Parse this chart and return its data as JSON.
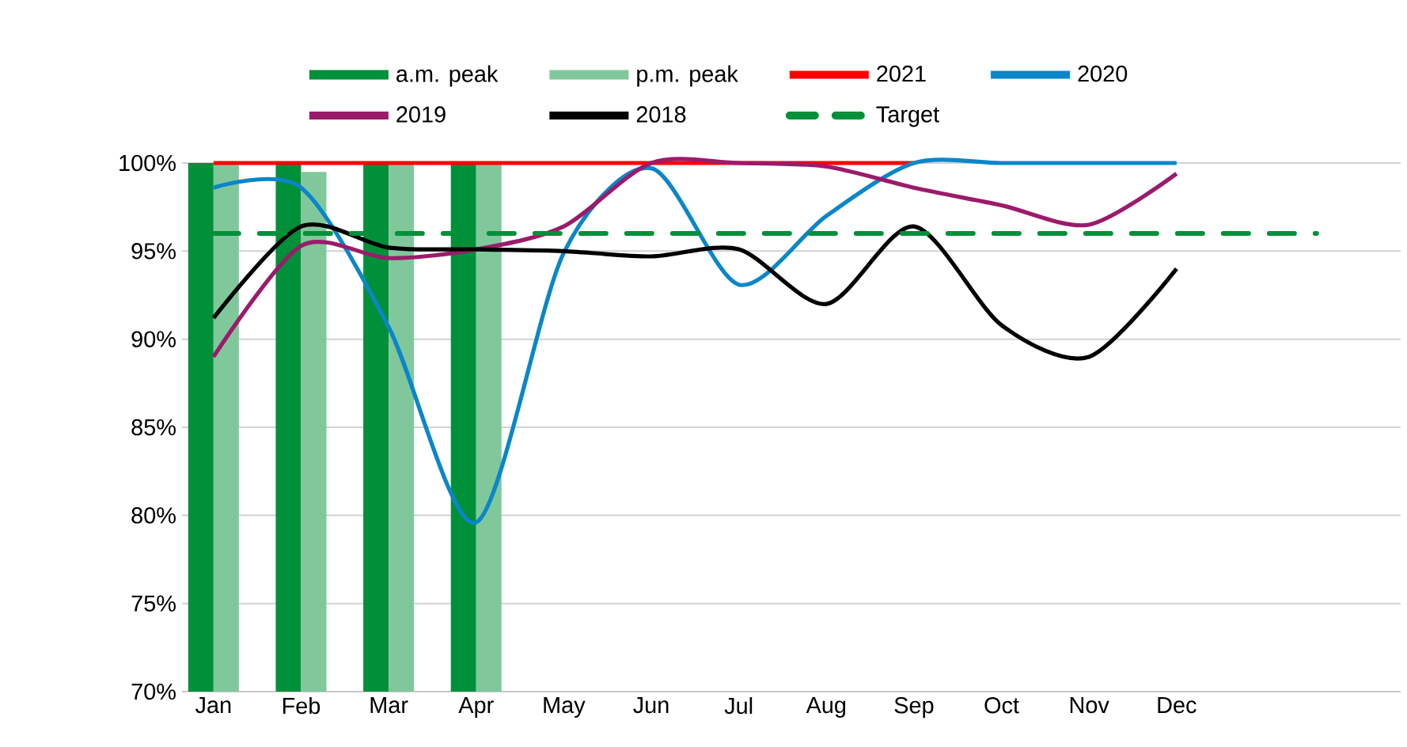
{
  "chart_data": {
    "type": "bar",
    "categories": [
      "Jan",
      "Feb",
      "Mar",
      "Apr",
      "May",
      "Jun",
      "Jul",
      "Aug",
      "Sep",
      "Oct",
      "Nov",
      "Dec"
    ],
    "series": [
      {
        "name": "a.m. peak",
        "color": "#009039",
        "values": [
          100,
          100,
          100,
          100,
          null,
          null,
          null,
          null,
          null,
          null,
          null,
          null
        ]
      },
      {
        "name": "p.m. peak",
        "color": "#80c89b",
        "values": [
          100,
          99.5,
          100,
          100,
          null,
          null,
          null,
          null,
          null,
          null,
          null,
          null
        ]
      },
      {
        "name": "2021",
        "type": "line",
        "color": "#ff0000",
        "values": [
          100,
          100,
          100,
          100,
          100,
          100,
          100,
          100,
          100,
          null,
          null,
          null
        ]
      },
      {
        "name": "2020",
        "type": "line",
        "color": "#0a86c9",
        "values": [
          98.6,
          98.6,
          90.7,
          79.6,
          94.9,
          99.7,
          93.1,
          97.0,
          100,
          100,
          100,
          100
        ]
      },
      {
        "name": "2019",
        "type": "line",
        "color": "#9b1b6b",
        "values": [
          89.0,
          95.3,
          94.6,
          95.1,
          96.4,
          100,
          100,
          99.8,
          98.6,
          97.6,
          96.5,
          99.4
        ]
      },
      {
        "name": "2018",
        "type": "line",
        "color": "#000000",
        "values": [
          91.2,
          96.4,
          95.2,
          95.1,
          95.0,
          94.7,
          95.1,
          92.0,
          96.4,
          90.8,
          89.0,
          94.0
        ]
      }
    ],
    "ref_lines": [
      {
        "axis": "y",
        "value": 96,
        "label": "Target",
        "color": "#009039",
        "line_style": "dashed"
      }
    ],
    "ylim": [
      70,
      100
    ],
    "yticks": [
      {
        "value": 70,
        "label": "70%"
      },
      {
        "value": 75,
        "label": "75%"
      },
      {
        "value": 80,
        "label": "80%"
      },
      {
        "value": 85,
        "label": "85%"
      },
      {
        "value": 90,
        "label": "90%"
      },
      {
        "value": 95,
        "label": "95%"
      },
      {
        "value": 100,
        "label": "100%"
      }
    ],
    "grid": "y",
    "legend": "top",
    "marker": "none",
    "line_style": "solid"
  }
}
